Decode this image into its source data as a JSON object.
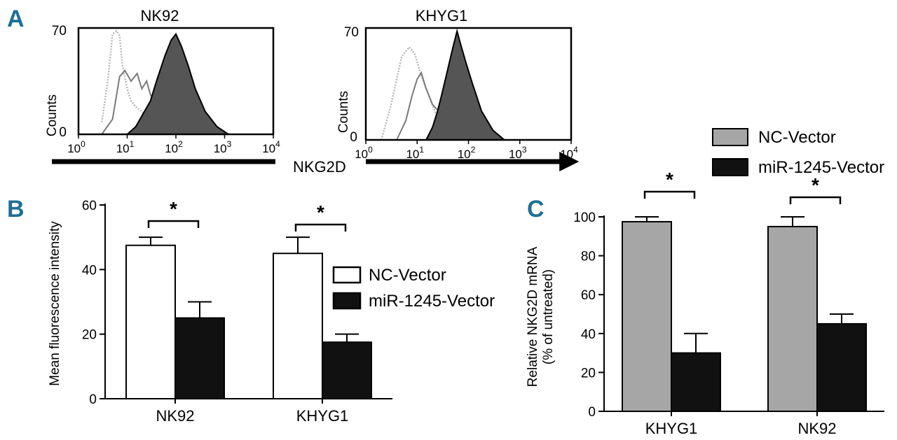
{
  "panels": {
    "a": "A",
    "b": "B",
    "c": "C"
  },
  "colors": {
    "letter": "#1f6f94",
    "nc_fill_b": "#ffffff",
    "mir_fill": "#111111",
    "nc_fill_c": "#a6a6a6",
    "hist_fill": "#555555"
  },
  "chart_data": [
    {
      "panel": "A-left",
      "type": "area",
      "title": "NK92",
      "ylabel": "Counts",
      "xlabel": "",
      "x_scale": "log",
      "xlim": [
        1,
        10000
      ],
      "ylim": [
        0,
        70
      ],
      "x_ticks": [
        {
          "base": "10",
          "exp": "0"
        },
        {
          "base": "10",
          "exp": "1"
        },
        {
          "base": "10",
          "exp": "2"
        },
        {
          "base": "10",
          "exp": "3"
        },
        {
          "base": "10",
          "exp": "4"
        }
      ],
      "y_ticks": [
        "70",
        "0"
      ],
      "series": [
        {
          "name": "control-dotted",
          "style": "dotted-light",
          "x": [
            3,
            4,
            5,
            6,
            7,
            8,
            10,
            12,
            15,
            20,
            30,
            50,
            100
          ],
          "values": [
            8,
            35,
            66,
            68,
            65,
            45,
            30,
            22,
            18,
            15,
            10,
            5,
            0
          ]
        },
        {
          "name": "control-solid",
          "style": "line-grey",
          "x": [
            3,
            5,
            7,
            9,
            12,
            16,
            20,
            25,
            30,
            40,
            60,
            100,
            200,
            500
          ],
          "values": [
            0,
            10,
            38,
            42,
            35,
            40,
            30,
            35,
            26,
            20,
            15,
            8,
            3,
            0
          ]
        },
        {
          "name": "NKG2D-stained",
          "style": "filled-dark",
          "x": [
            10,
            15,
            20,
            30,
            40,
            60,
            80,
            100,
            130,
            180,
            250,
            400,
            700,
            1200
          ],
          "values": [
            0,
            5,
            12,
            22,
            35,
            52,
            62,
            66,
            58,
            45,
            30,
            15,
            5,
            0
          ]
        }
      ]
    },
    {
      "panel": "A-right",
      "type": "area",
      "title": "KHYG1",
      "ylabel": "Counts",
      "xlabel": "NKG2D",
      "x_scale": "log",
      "xlim": [
        1,
        10000
      ],
      "ylim": [
        0,
        70
      ],
      "x_ticks": [
        {
          "base": "10",
          "exp": "0"
        },
        {
          "base": "10",
          "exp": "1"
        },
        {
          "base": "10",
          "exp": "2"
        },
        {
          "base": "10",
          "exp": "3"
        },
        {
          "base": "10",
          "exp": "4"
        }
      ],
      "y_ticks": [
        "70",
        "0"
      ],
      "series": [
        {
          "name": "control-dotted",
          "style": "dotted-light",
          "x": [
            2,
            3,
            4,
            5,
            7,
            9,
            12,
            16,
            22,
            30,
            50,
            100
          ],
          "values": [
            0,
            20,
            38,
            52,
            58,
            54,
            40,
            30,
            18,
            10,
            4,
            0
          ]
        },
        {
          "name": "control-solid",
          "style": "line-grey",
          "x": [
            4,
            6,
            8,
            10,
            12,
            15,
            20,
            30,
            40,
            60,
            100
          ],
          "values": [
            0,
            12,
            28,
            38,
            42,
            32,
            22,
            16,
            10,
            4,
            0
          ]
        },
        {
          "name": "NKG2D-stained",
          "style": "filled-dark",
          "x": [
            15,
            20,
            25,
            30,
            40,
            50,
            60,
            70,
            90,
            120,
            180,
            300,
            500
          ],
          "values": [
            0,
            8,
            18,
            28,
            45,
            58,
            68,
            60,
            48,
            35,
            18,
            6,
            0
          ]
        }
      ]
    },
    {
      "panel": "B",
      "type": "bar",
      "title": "",
      "ylabel": "Mean fluorescence intensity",
      "xlabel": "",
      "categories": [
        "NK92",
        "KHYG1"
      ],
      "ylim": [
        0,
        60
      ],
      "y_ticks": [
        0,
        20,
        40,
        60
      ],
      "series": [
        {
          "name": "NC-Vector",
          "values": [
            47.5,
            45
          ],
          "errors": [
            2.5,
            5
          ]
        },
        {
          "name": "miR-1245-Vector",
          "values": [
            25,
            17.5
          ],
          "errors": [
            5,
            2.5
          ]
        }
      ],
      "significance": [
        "*",
        "*"
      ],
      "legend": "center-right"
    },
    {
      "panel": "C",
      "type": "bar",
      "title": "",
      "ylabel": "Relative NKG2D mRNA",
      "ylabel2": "(% of untreated)",
      "xlabel": "",
      "categories": [
        "KHYG1",
        "NK92"
      ],
      "ylim": [
        0,
        100
      ],
      "y_ticks": [
        0,
        20,
        40,
        60,
        80,
        100
      ],
      "series": [
        {
          "name": "NC-Vector",
          "values": [
            97.5,
            95
          ],
          "errors": [
            2.5,
            5
          ]
        },
        {
          "name": "miR-1245-Vector",
          "values": [
            30,
            45
          ],
          "errors": [
            10,
            5
          ]
        }
      ],
      "significance": [
        "*",
        "*"
      ],
      "legend": "top"
    }
  ]
}
